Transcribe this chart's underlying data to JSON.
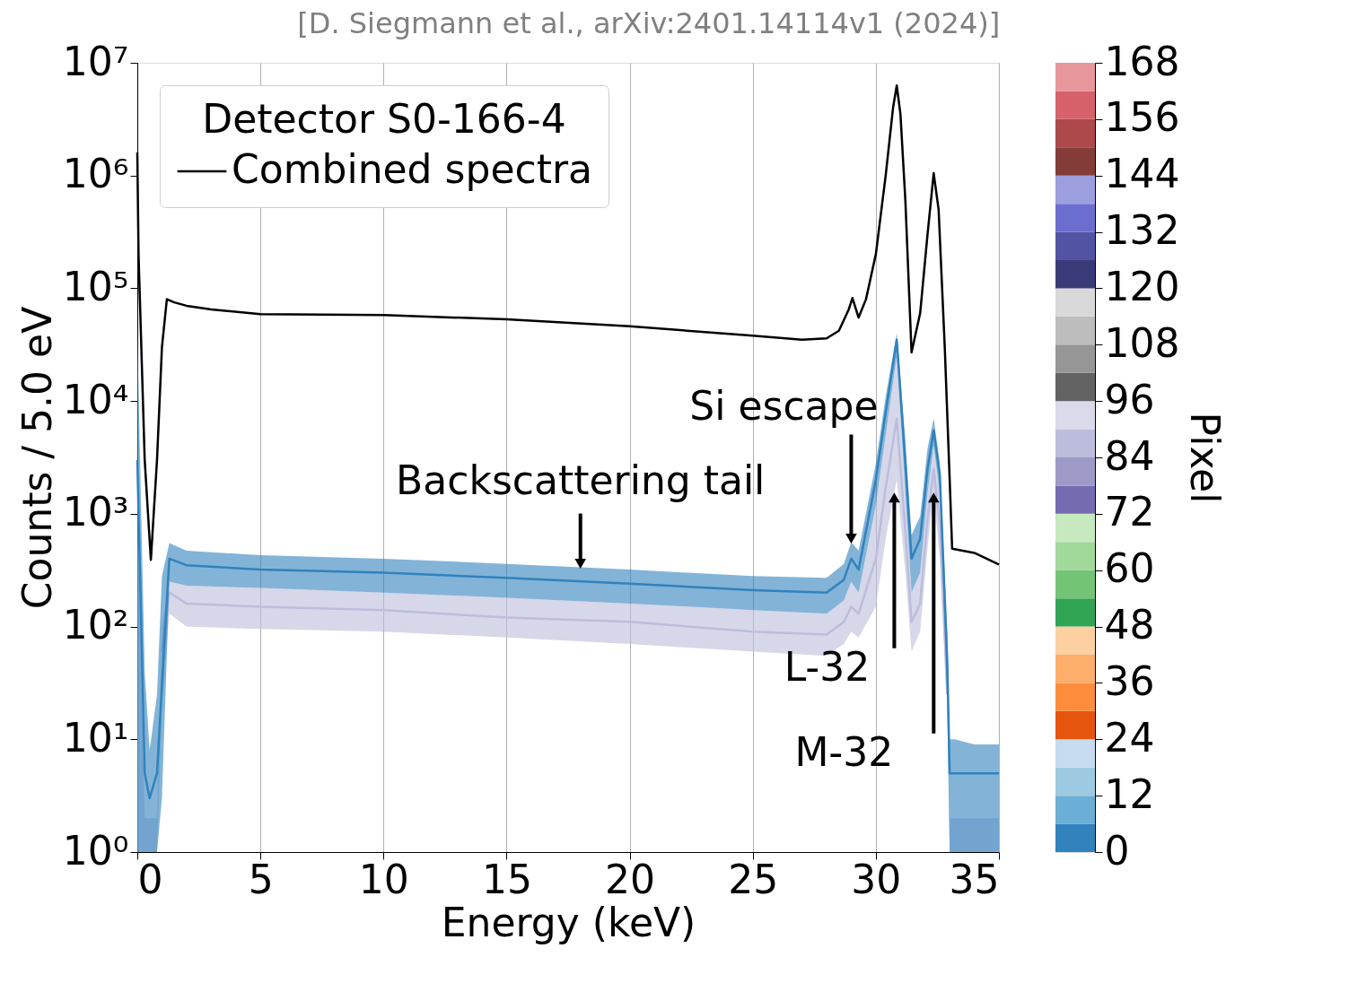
{
  "chart_data": {
    "type": "line",
    "xlabel": "Energy (keV)",
    "ylabel": "Counts / 5.0 eV",
    "legend_title": "Detector S0-166-4",
    "legend": "top left",
    "log": "y",
    "grid": "x",
    "xlim": [
      0,
      35
    ],
    "xticks": [
      0,
      5,
      10,
      15,
      20,
      25,
      30,
      35
    ],
    "ylim": [
      1,
      10000000
    ],
    "yticks": [
      {
        "value": 1,
        "label": "10⁰"
      },
      {
        "value": 10,
        "label": "10¹"
      },
      {
        "value": 100,
        "label": "10²"
      },
      {
        "value": 1000,
        "label": "10³"
      },
      {
        "value": 10000,
        "label": "10⁴"
      },
      {
        "value": 100000,
        "label": "10⁵"
      },
      {
        "value": 1000000,
        "label": "10⁶"
      },
      {
        "value": 10000000,
        "label": "10⁷"
      }
    ],
    "clabel": "Pixel",
    "clim": [
      0,
      168
    ],
    "cticks": [
      0,
      12,
      24,
      36,
      48,
      60,
      72,
      84,
      96,
      108,
      120,
      132,
      144,
      156,
      168
    ],
    "colors": [
      "#3182bd",
      "#6baed6",
      "#9ecae1",
      "#c6dbef",
      "#e6550d",
      "#fd8d3c",
      "#fdae6b",
      "#fdd0a2",
      "#31a354",
      "#74c476",
      "#a1d99b",
      "#c7e9c0",
      "#756bb1",
      "#9e9ac8",
      "#bcbddc",
      "#dadaeb",
      "#636363",
      "#969696",
      "#bdbdbd",
      "#d9d9d9",
      "#393b79",
      "#5254a3",
      "#6b6ecf",
      "#9c9ede",
      "#843c39",
      "#ad494a",
      "#d6616b",
      "#e7969c"
    ],
    "series": [
      {
        "color": "#bcbddc",
        "x": [
          0,
          0.3,
          0.5,
          0.8,
          1.0,
          1.3,
          2,
          5,
          10,
          15,
          20,
          25,
          28,
          28.7,
          29.0,
          29.3,
          30,
          30.4,
          30.85,
          31.2,
          31.45,
          31.8,
          32.1,
          32.35,
          32.6,
          32.9,
          33.0,
          33.2,
          34,
          35
        ],
        "values": [
          null,
          null,
          null,
          null,
          60,
          200,
          160,
          150,
          140,
          120,
          110,
          90,
          85,
          110,
          150,
          130,
          400,
          1700,
          7000,
          700,
          110,
          160,
          900,
          2500,
          800,
          25,
          null,
          null,
          null,
          null
        ],
        "lower": [
          1,
          1,
          1,
          1,
          20,
          130,
          100,
          95,
          90,
          80,
          70,
          60,
          55,
          70,
          90,
          80,
          150,
          600,
          2000,
          300,
          60,
          90,
          500,
          1500,
          400,
          20,
          1,
          1,
          1,
          1
        ],
        "upper": [
          1000,
          2,
          2,
          2,
          100,
          250,
          230,
          220,
          200,
          180,
          160,
          140,
          130,
          170,
          250,
          200,
          1200,
          5000,
          25000,
          1500,
          200,
          300,
          1500,
          4000,
          1500,
          30,
          2,
          2,
          2,
          2
        ]
      },
      {
        "color": "#3182bd",
        "x": [
          0,
          0.3,
          0.5,
          0.8,
          1.0,
          1.3,
          2,
          5,
          10,
          15,
          20,
          25,
          28,
          28.7,
          29.0,
          29.3,
          30,
          30.4,
          30.85,
          31.2,
          31.45,
          31.8,
          32.1,
          32.35,
          32.6,
          32.9,
          33.0,
          33.2,
          34,
          35
        ],
        "values": [
          3000,
          5,
          3,
          5,
          30,
          400,
          350,
          320,
          300,
          270,
          240,
          210,
          200,
          260,
          400,
          320,
          2000,
          8000,
          35000,
          2800,
          400,
          600,
          2500,
          5500,
          2200,
          50,
          5,
          5,
          5,
          5
        ],
        "lower": [
          1,
          1,
          1,
          1,
          3,
          250,
          230,
          220,
          200,
          180,
          160,
          140,
          130,
          170,
          250,
          200,
          1200,
          5000,
          25000,
          1500,
          200,
          300,
          1500,
          4000,
          1500,
          20,
          1,
          1,
          1,
          1
        ],
        "upper": [
          40000,
          40,
          8,
          25,
          280,
          550,
          470,
          430,
          400,
          360,
          320,
          280,
          270,
          360,
          560,
          470,
          2800,
          11000,
          40000,
          4500,
          650,
          950,
          3800,
          7000,
          2800,
          90,
          10,
          10,
          9,
          9
        ]
      },
      {
        "name": "Combined spectra",
        "color": "#000000",
        "x": [
          0,
          0.05,
          0.3,
          0.55,
          0.8,
          1.0,
          1.2,
          1.5,
          2,
          3,
          5,
          10,
          15,
          20,
          25,
          27,
          28,
          28.5,
          28.9,
          29.05,
          29.3,
          29.6,
          30,
          30.4,
          30.7,
          30.85,
          31.0,
          31.2,
          31.45,
          31.8,
          32.1,
          32.35,
          32.55,
          32.8,
          33.0,
          33.1,
          34,
          35
        ],
        "values": [
          1600000,
          200000,
          3000,
          390,
          3000,
          30000,
          80000,
          75000,
          70000,
          65000,
          59000,
          58000,
          53000,
          46000,
          38000,
          35000,
          36000,
          42000,
          65000,
          82000,
          55000,
          80000,
          200000,
          1000000,
          4000000,
          6300000,
          3500000,
          600000,
          27000,
          60000,
          300000,
          1050000,
          500000,
          30000,
          2000,
          490,
          450,
          355
        ]
      }
    ],
    "annotations": [
      "[D. Siegmann et al., arXiv:2401.14114v1 (2024)]",
      {
        "text": "Backscattering tail",
        "x": 18,
        "y": 335
      },
      {
        "text": "Si escape",
        "x": 29.0,
        "y": 560
      },
      {
        "text": "L-32",
        "x": 30.75,
        "y": 1500
      },
      {
        "text": "M-32",
        "x": 32.35,
        "y": 1500
      }
    ]
  }
}
